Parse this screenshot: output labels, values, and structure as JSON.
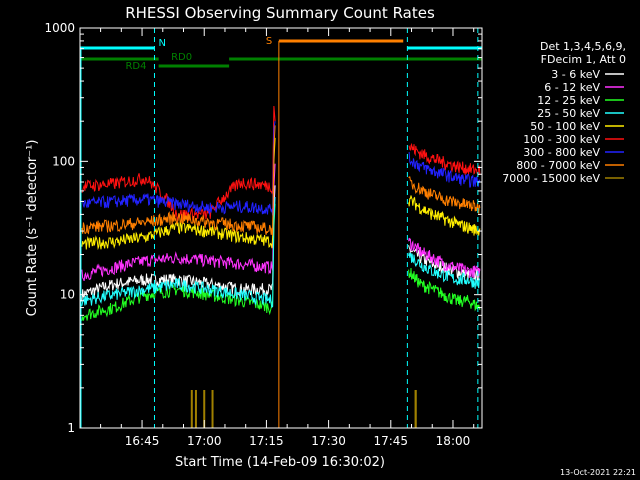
{
  "chart_data": {
    "type": "line",
    "title": "RHESSI Observing Summary Count Rates",
    "xlabel": "Start Time (14-Feb-09 16:30:02)",
    "ylabel": "Count Rate (s⁻¹ detector⁻¹)",
    "y_scale": "log",
    "ylim": [
      1,
      1000
    ],
    "xlim": [
      "16:30",
      "18:07"
    ],
    "x_ticks": [
      "16:45",
      "17:00",
      "17:15",
      "17:30",
      "17:45",
      "18:00"
    ],
    "y_ticks": [
      "1",
      "10",
      "100",
      "1000"
    ],
    "legend_header": [
      "Det 1,3,4,5,6,9,",
      "FDecim 1, Att 0"
    ],
    "legend_position": "right",
    "timestamp": "13-Oct-2021 22:21",
    "flag_labels": {
      "night": "N",
      "saa": "S",
      "rd0": "RD0",
      "rd4": "RD4"
    },
    "flags": {
      "night": [
        [
          "16:30",
          "16:48"
        ],
        [
          "17:49",
          "18:07"
        ]
      ],
      "saa": [
        [
          "17:18",
          "17:48"
        ]
      ],
      "rd0": [
        [
          "16:30",
          "16:49"
        ],
        [
          "17:06",
          "18:07"
        ]
      ],
      "rd4": [
        [
          "16:49",
          "17:06"
        ]
      ]
    },
    "vlines_dashed": [
      "16:48",
      "17:49",
      "18:06"
    ],
    "series": [
      {
        "name": "3 - 6 keV",
        "color": "#ffffff",
        "pre": [
          10,
          12,
          13,
          13,
          12,
          11,
          11
        ],
        "post": [
          22,
          19,
          17,
          16,
          15,
          14,
          14
        ]
      },
      {
        "name": "6 - 12 keV",
        "color": "#ff33ff",
        "pre": [
          14,
          16,
          18,
          19,
          18,
          17,
          16
        ],
        "post": [
          25,
          21,
          19,
          17,
          16,
          15,
          15
        ]
      },
      {
        "name": "12 - 25 keV",
        "color": "#22ff22",
        "pre": [
          7,
          8,
          10,
          11,
          10,
          9,
          8
        ],
        "post": [
          15,
          12,
          11,
          10,
          9,
          9,
          8
        ]
      },
      {
        "name": "25 - 50 keV",
        "color": "#22ffff",
        "pre": [
          9,
          10,
          11,
          12,
          11,
          10,
          9
        ],
        "post": [
          20,
          17,
          15,
          14,
          13,
          13,
          12
        ]
      },
      {
        "name": "50 - 100 keV",
        "color": "#ffee00",
        "pre": [
          24,
          25,
          27,
          32,
          30,
          27,
          25
        ],
        "post": [
          52,
          45,
          40,
          37,
          34,
          32,
          30
        ]
      },
      {
        "name": "100 - 300 keV",
        "color": "#ff1111",
        "pre": [
          65,
          68,
          75,
          40,
          40,
          70,
          65
        ],
        "post": [
          130,
          115,
          105,
          98,
          92,
          88,
          85
        ]
      },
      {
        "name": "300 - 800 keV",
        "color": "#2222ff",
        "pre": [
          48,
          50,
          52,
          48,
          45,
          46,
          44
        ],
        "post": [
          105,
          92,
          85,
          80,
          75,
          72,
          70
        ]
      },
      {
        "name": "800 - 7000 keV",
        "color": "#ff7f00",
        "pre": [
          32,
          33,
          35,
          38,
          35,
          33,
          31
        ],
        "post": [
          70,
          62,
          56,
          52,
          49,
          47,
          45
        ]
      },
      {
        "name": "7000 - 15000 keV",
        "color": "#a08000",
        "pre": [
          1,
          1,
          1,
          1,
          1,
          1,
          1
        ],
        "post": [
          1,
          1,
          1,
          1,
          1,
          1,
          1
        ]
      }
    ]
  }
}
